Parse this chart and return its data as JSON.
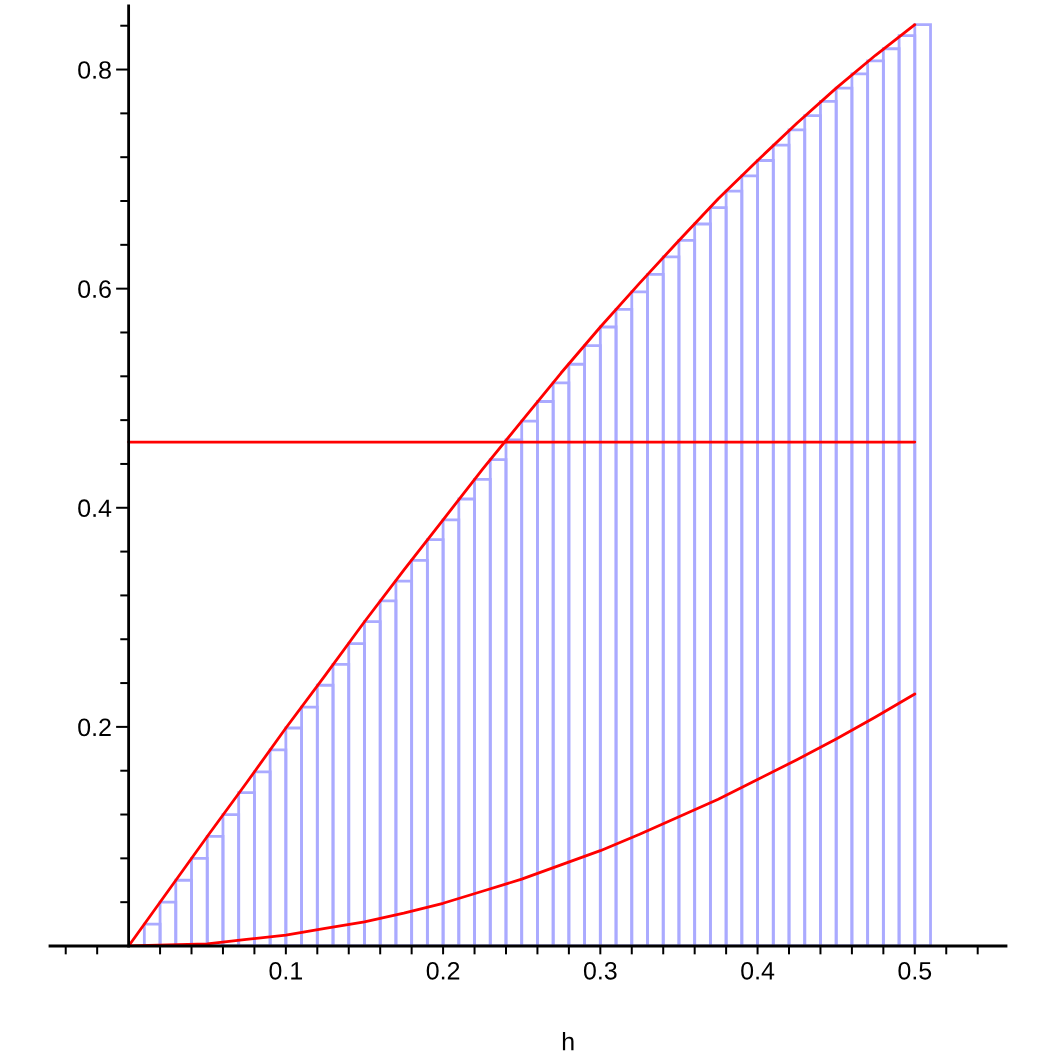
{
  "chart_data": {
    "type": "histogram",
    "xlabel": "h",
    "color": "#aaaaff",
    "bins": [
      0.01,
      0.02,
      0.03,
      0.04,
      0.05,
      0.06,
      0.07,
      0.08,
      0.09,
      0.1,
      0.11,
      0.12,
      0.13,
      0.14,
      0.15,
      0.16,
      0.17,
      0.18,
      0.19,
      0.2,
      0.21,
      0.22,
      0.23,
      0.24,
      0.25,
      0.26,
      0.27,
      0.28,
      0.29,
      0.3,
      0.31,
      0.32,
      0.33,
      0.34,
      0.35,
      0.36,
      0.37,
      0.38,
      0.39,
      0.4,
      0.41,
      0.42,
      0.43,
      0.44,
      0.45,
      0.46,
      0.47,
      0.48,
      0.49,
      0.5,
      0.51
    ],
    "values": [
      0.02,
      0.04,
      0.06,
      0.08,
      0.1,
      0.12,
      0.14,
      0.159,
      0.179,
      0.199,
      0.218,
      0.238,
      0.257,
      0.276,
      0.296,
      0.315,
      0.333,
      0.352,
      0.371,
      0.389,
      0.408,
      0.426,
      0.444,
      0.462,
      0.479,
      0.497,
      0.514,
      0.531,
      0.548,
      0.565,
      0.581,
      0.597,
      0.613,
      0.629,
      0.644,
      0.659,
      0.674,
      0.689,
      0.703,
      0.717,
      0.731,
      0.745,
      0.758,
      0.771,
      0.783,
      0.796,
      0.808,
      0.819,
      0.831,
      0.841
    ],
    "series": [
      {
        "type": "line",
        "color": "#ff0000",
        "x": [
          0,
          0.025,
          0.05,
          0.075,
          0.1,
          0.125,
          0.15,
          0.175,
          0.2,
          0.225,
          0.25,
          0.275,
          0.3,
          0.325,
          0.35,
          0.375,
          0.4,
          0.425,
          0.45,
          0.475,
          0.5
        ],
        "values": [
          0,
          0.05,
          0.1,
          0.149,
          0.199,
          0.247,
          0.296,
          0.343,
          0.389,
          0.435,
          0.479,
          0.523,
          0.565,
          0.605,
          0.644,
          0.682,
          0.717,
          0.751,
          0.783,
          0.813,
          0.841
        ]
      },
      {
        "type": "line",
        "color": "#ff0000",
        "x": [
          0,
          0.025,
          0.05,
          0.075,
          0.1,
          0.125,
          0.15,
          0.175,
          0.2,
          0.225,
          0.25,
          0.275,
          0.3,
          0.325,
          0.35,
          0.375,
          0.4,
          0.425,
          0.45,
          0.475,
          0.5
        ],
        "values": [
          0,
          0.001,
          0.002,
          0.006,
          0.01,
          0.016,
          0.022,
          0.03,
          0.039,
          0.05,
          0.061,
          0.074,
          0.087,
          0.102,
          0.118,
          0.134,
          0.152,
          0.17,
          0.189,
          0.209,
          0.23
        ]
      },
      {
        "type": "line",
        "color": "#ff0000",
        "x": [
          0,
          0.5
        ],
        "values": [
          0.46,
          0.46
        ]
      }
    ],
    "xlim": [
      -0.05,
      0.558
    ],
    "ylim": [
      0,
      0.858
    ],
    "xticks": [
      {
        "value": -0.04,
        "label": null
      },
      {
        "value": -0.02,
        "label": null
      },
      {
        "value": 0.02,
        "label": null
      },
      {
        "value": 0.04,
        "label": null
      },
      {
        "value": 0.06,
        "label": null
      },
      {
        "value": 0.08,
        "label": null
      },
      0.1,
      {
        "value": 0.12,
        "label": null
      },
      {
        "value": 0.14,
        "label": null
      },
      {
        "value": 0.16,
        "label": null
      },
      {
        "value": 0.18,
        "label": null
      },
      0.2,
      {
        "value": 0.22,
        "label": null
      },
      {
        "value": 0.24,
        "label": null
      },
      {
        "value": 0.26,
        "label": null
      },
      {
        "value": 0.28,
        "label": null
      },
      0.3,
      {
        "value": 0.32,
        "label": null
      },
      {
        "value": 0.34,
        "label": null
      },
      {
        "value": 0.36,
        "label": null
      },
      {
        "value": 0.38,
        "label": null
      },
      0.4,
      {
        "value": 0.42,
        "label": null
      },
      {
        "value": 0.44,
        "label": null
      },
      {
        "value": 0.46,
        "label": null
      },
      {
        "value": 0.48,
        "label": null
      },
      0.5,
      {
        "value": 0.52,
        "label": null
      },
      {
        "value": 0.54,
        "label": null
      }
    ],
    "yticks": [
      {
        "value": 0.04,
        "label": null
      },
      {
        "value": 0.08,
        "label": null
      },
      {
        "value": 0.12,
        "label": null
      },
      {
        "value": 0.16,
        "label": null
      },
      0.2,
      {
        "value": 0.24,
        "label": null
      },
      {
        "value": 0.28,
        "label": null
      },
      {
        "value": 0.32,
        "label": null
      },
      {
        "value": 0.36,
        "label": null
      },
      0.4,
      {
        "value": 0.44,
        "label": null
      },
      {
        "value": 0.48,
        "label": null
      },
      {
        "value": 0.52,
        "label": null
      },
      {
        "value": 0.56,
        "label": null
      },
      0.6,
      {
        "value": 0.64,
        "label": null
      },
      {
        "value": 0.68,
        "label": null
      },
      {
        "value": 0.72,
        "label": null
      },
      {
        "value": 0.76,
        "label": null
      },
      0.8,
      {
        "value": 0.84,
        "label": null
      }
    ]
  }
}
